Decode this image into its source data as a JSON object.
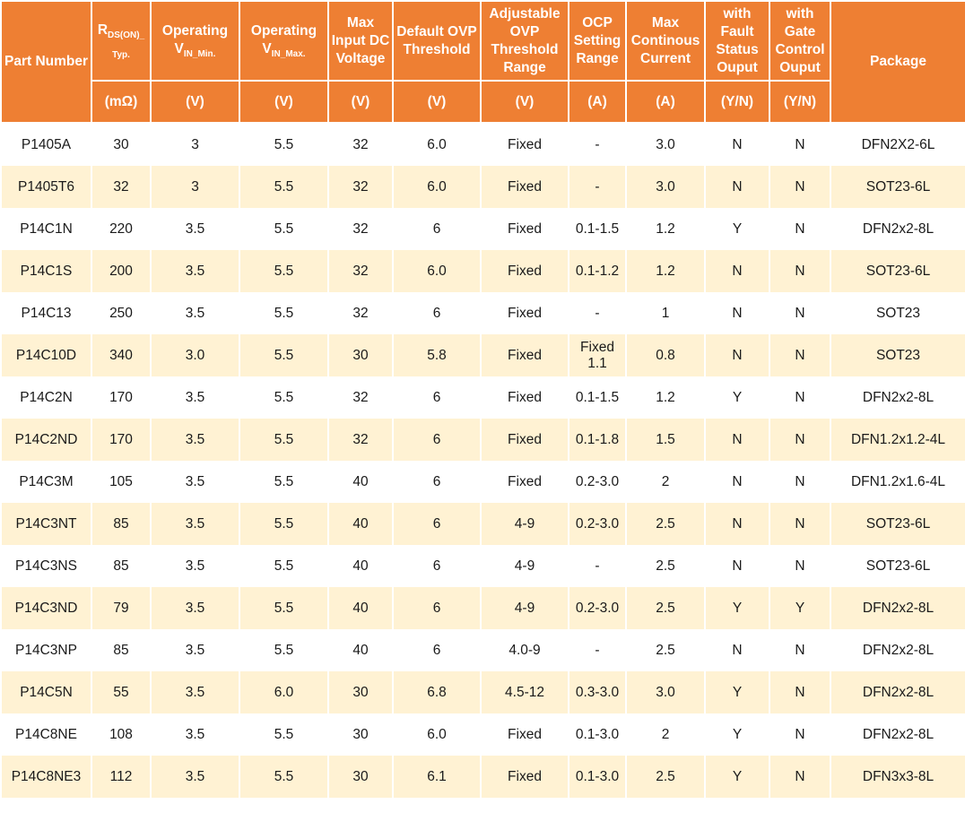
{
  "header": {
    "part_number": "Part Number",
    "rds_main": "R",
    "rds_sub": "DS(ON)_ Typ.",
    "vin_min_main": "Operating V",
    "vin_min_sub": "IN_Min.",
    "vin_max_main": "Operating V",
    "vin_max_sub": "IN_Max.",
    "max_input": "Max Input DC Voltage",
    "default_ovp": "Default OVP Threshold",
    "adj_ovp": "Adjustable OVP Threshold Range",
    "ocp": "OCP Setting Range",
    "max_current": "Max Continous Current",
    "fault": "with Fault Status Ouput",
    "gate": "with Gate Control Ouput",
    "package": "Package"
  },
  "units": {
    "rds": "(mΩ)",
    "vin_min": "(V)",
    "vin_max": "(V)",
    "max_input": "(V)",
    "default_ovp": "(V)",
    "adj_ovp": "(V)",
    "ocp": "(A)",
    "max_current": "(A)",
    "fault": "(Y/N)",
    "gate": "(Y/N)"
  },
  "rows": [
    [
      "P1405A",
      "30",
      "3",
      "5.5",
      "32",
      "6.0",
      "Fixed",
      "-",
      "3.0",
      "N",
      "N",
      "DFN2X2-6L"
    ],
    [
      "P1405T6",
      "32",
      "3",
      "5.5",
      "32",
      "6.0",
      "Fixed",
      "-",
      "3.0",
      "N",
      "N",
      "SOT23-6L"
    ],
    [
      "P14C1N",
      "220",
      "3.5",
      "5.5",
      "32",
      "6",
      "Fixed",
      "0.1-1.5",
      "1.2",
      "Y",
      "N",
      "DFN2x2-8L"
    ],
    [
      "P14C1S",
      "200",
      "3.5",
      "5.5",
      "32",
      "6.0",
      "Fixed",
      "0.1-1.2",
      "1.2",
      "N",
      "N",
      "SOT23-6L"
    ],
    [
      "P14C13",
      "250",
      "3.5",
      "5.5",
      "32",
      "6",
      "Fixed",
      "-",
      "1",
      "N",
      "N",
      "SOT23"
    ],
    [
      "P14C10D",
      "340",
      "3.0",
      "5.5",
      "30",
      "5.8",
      "Fixed",
      "Fixed 1.1",
      "0.8",
      "N",
      "N",
      "SOT23"
    ],
    [
      "P14C2N",
      "170",
      "3.5",
      "5.5",
      "32",
      "6",
      "Fixed",
      "0.1-1.5",
      "1.2",
      "Y",
      "N",
      "DFN2x2-8L"
    ],
    [
      "P14C2ND",
      "170",
      "3.5",
      "5.5",
      "32",
      "6",
      "Fixed",
      "0.1-1.8",
      "1.5",
      "N",
      "N",
      "DFN1.2x1.2-4L"
    ],
    [
      "P14C3M",
      "105",
      "3.5",
      "5.5",
      "40",
      "6",
      "Fixed",
      "0.2-3.0",
      "2",
      "N",
      "N",
      "DFN1.2x1.6-4L"
    ],
    [
      "P14C3NT",
      "85",
      "3.5",
      "5.5",
      "40",
      "6",
      "4-9",
      "0.2-3.0",
      "2.5",
      "N",
      "N",
      "SOT23-6L"
    ],
    [
      "P14C3NS",
      "85",
      "3.5",
      "5.5",
      "40",
      "6",
      "4-9",
      "-",
      "2.5",
      "N",
      "N",
      "SOT23-6L"
    ],
    [
      "P14C3ND",
      "79",
      "3.5",
      "5.5",
      "40",
      "6",
      "4-9",
      "0.2-3.0",
      "2.5",
      "Y",
      "Y",
      "DFN2x2-8L"
    ],
    [
      "P14C3NP",
      "85",
      "3.5",
      "5.5",
      "40",
      "6",
      "4.0-9",
      "-",
      "2.5",
      "N",
      "N",
      "DFN2x2-8L"
    ],
    [
      "P14C5N",
      "55",
      "3.5",
      "6.0",
      "30",
      "6.8",
      "4.5-12",
      "0.3-3.0",
      "3.0",
      "Y",
      "N",
      "DFN2x2-8L"
    ],
    [
      "P14C8NE",
      "108",
      "3.5",
      "5.5",
      "30",
      "6.0",
      "Fixed",
      "0.1-3.0",
      "2",
      "Y",
      "N",
      "DFN2x2-8L"
    ],
    [
      "P14C8NE3",
      "112",
      "3.5",
      "5.5",
      "30",
      "6.1",
      "Fixed",
      "0.1-3.0",
      "2.5",
      "Y",
      "N",
      "DFN3x3-8L"
    ]
  ],
  "colors": {
    "header_bg": "#ee7f33",
    "stripe_bg": "#fff2d3"
  }
}
